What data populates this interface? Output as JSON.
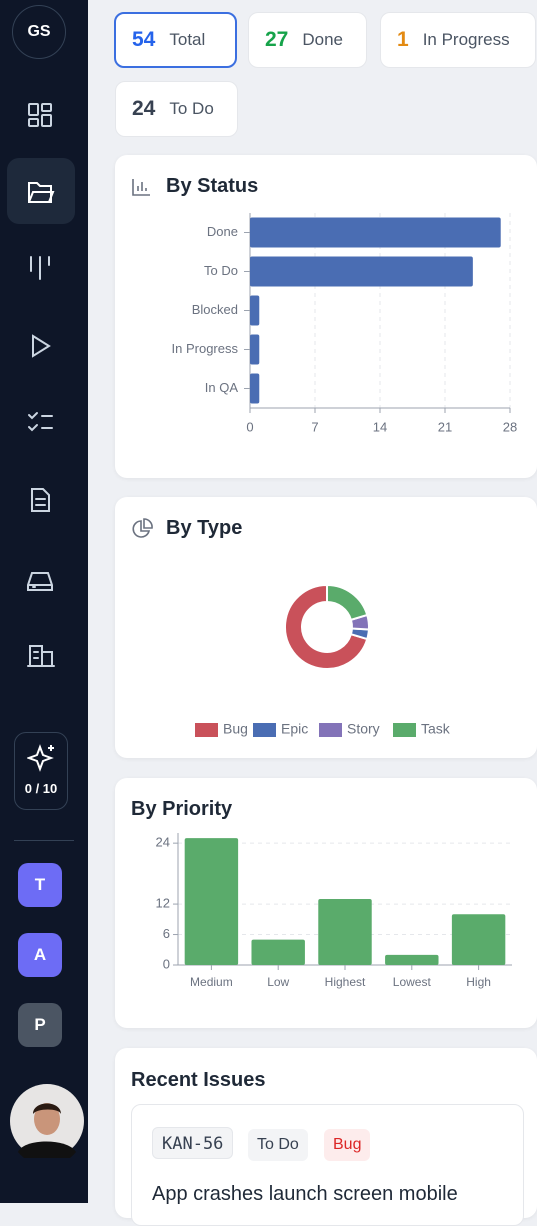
{
  "sidebar": {
    "avatar": "GS",
    "credits": "0 / 10",
    "projects": [
      "T",
      "A",
      "P"
    ]
  },
  "stats": [
    {
      "value": 54,
      "label": "Total"
    },
    {
      "value": 27,
      "label": "Done"
    },
    {
      "value": 1,
      "label": "In Progress"
    },
    {
      "value": 24,
      "label": "To Do"
    }
  ],
  "chart_data": [
    {
      "type": "bar",
      "orientation": "horizontal",
      "title": "By Status",
      "categories": [
        "Done",
        "To Do",
        "Blocked",
        "In Progress",
        "In QA"
      ],
      "values": [
        27,
        24,
        1,
        1,
        1
      ],
      "color": "#4a6db3",
      "xlim": [
        0,
        28
      ],
      "xticks": [
        0,
        7,
        14,
        21,
        28
      ],
      "grid": true
    },
    {
      "type": "donut",
      "title": "By Type",
      "categories": [
        "Bug",
        "Epic",
        "Story",
        "Task"
      ],
      "values": [
        38,
        2,
        3,
        11
      ],
      "colors": [
        "#c9515a",
        "#4a6db3",
        "#8373b8",
        "#5aab6b"
      ],
      "legend": "bottom"
    },
    {
      "type": "bar",
      "orientation": "vertical",
      "title": "By Priority",
      "categories": [
        "Medium",
        "Low",
        "Highest",
        "Lowest",
        "High"
      ],
      "values": [
        25,
        5,
        13,
        2,
        10
      ],
      "color": "#5aab6b",
      "ylim": [
        0,
        26
      ],
      "yticks": [
        0,
        6,
        12,
        24
      ],
      "grid": true
    }
  ],
  "recent_issues": {
    "title": "Recent Issues",
    "items": [
      {
        "key": "KAN-56",
        "status": "To Do",
        "type": "Bug",
        "title": "App crashes launch screen mobile"
      }
    ]
  }
}
